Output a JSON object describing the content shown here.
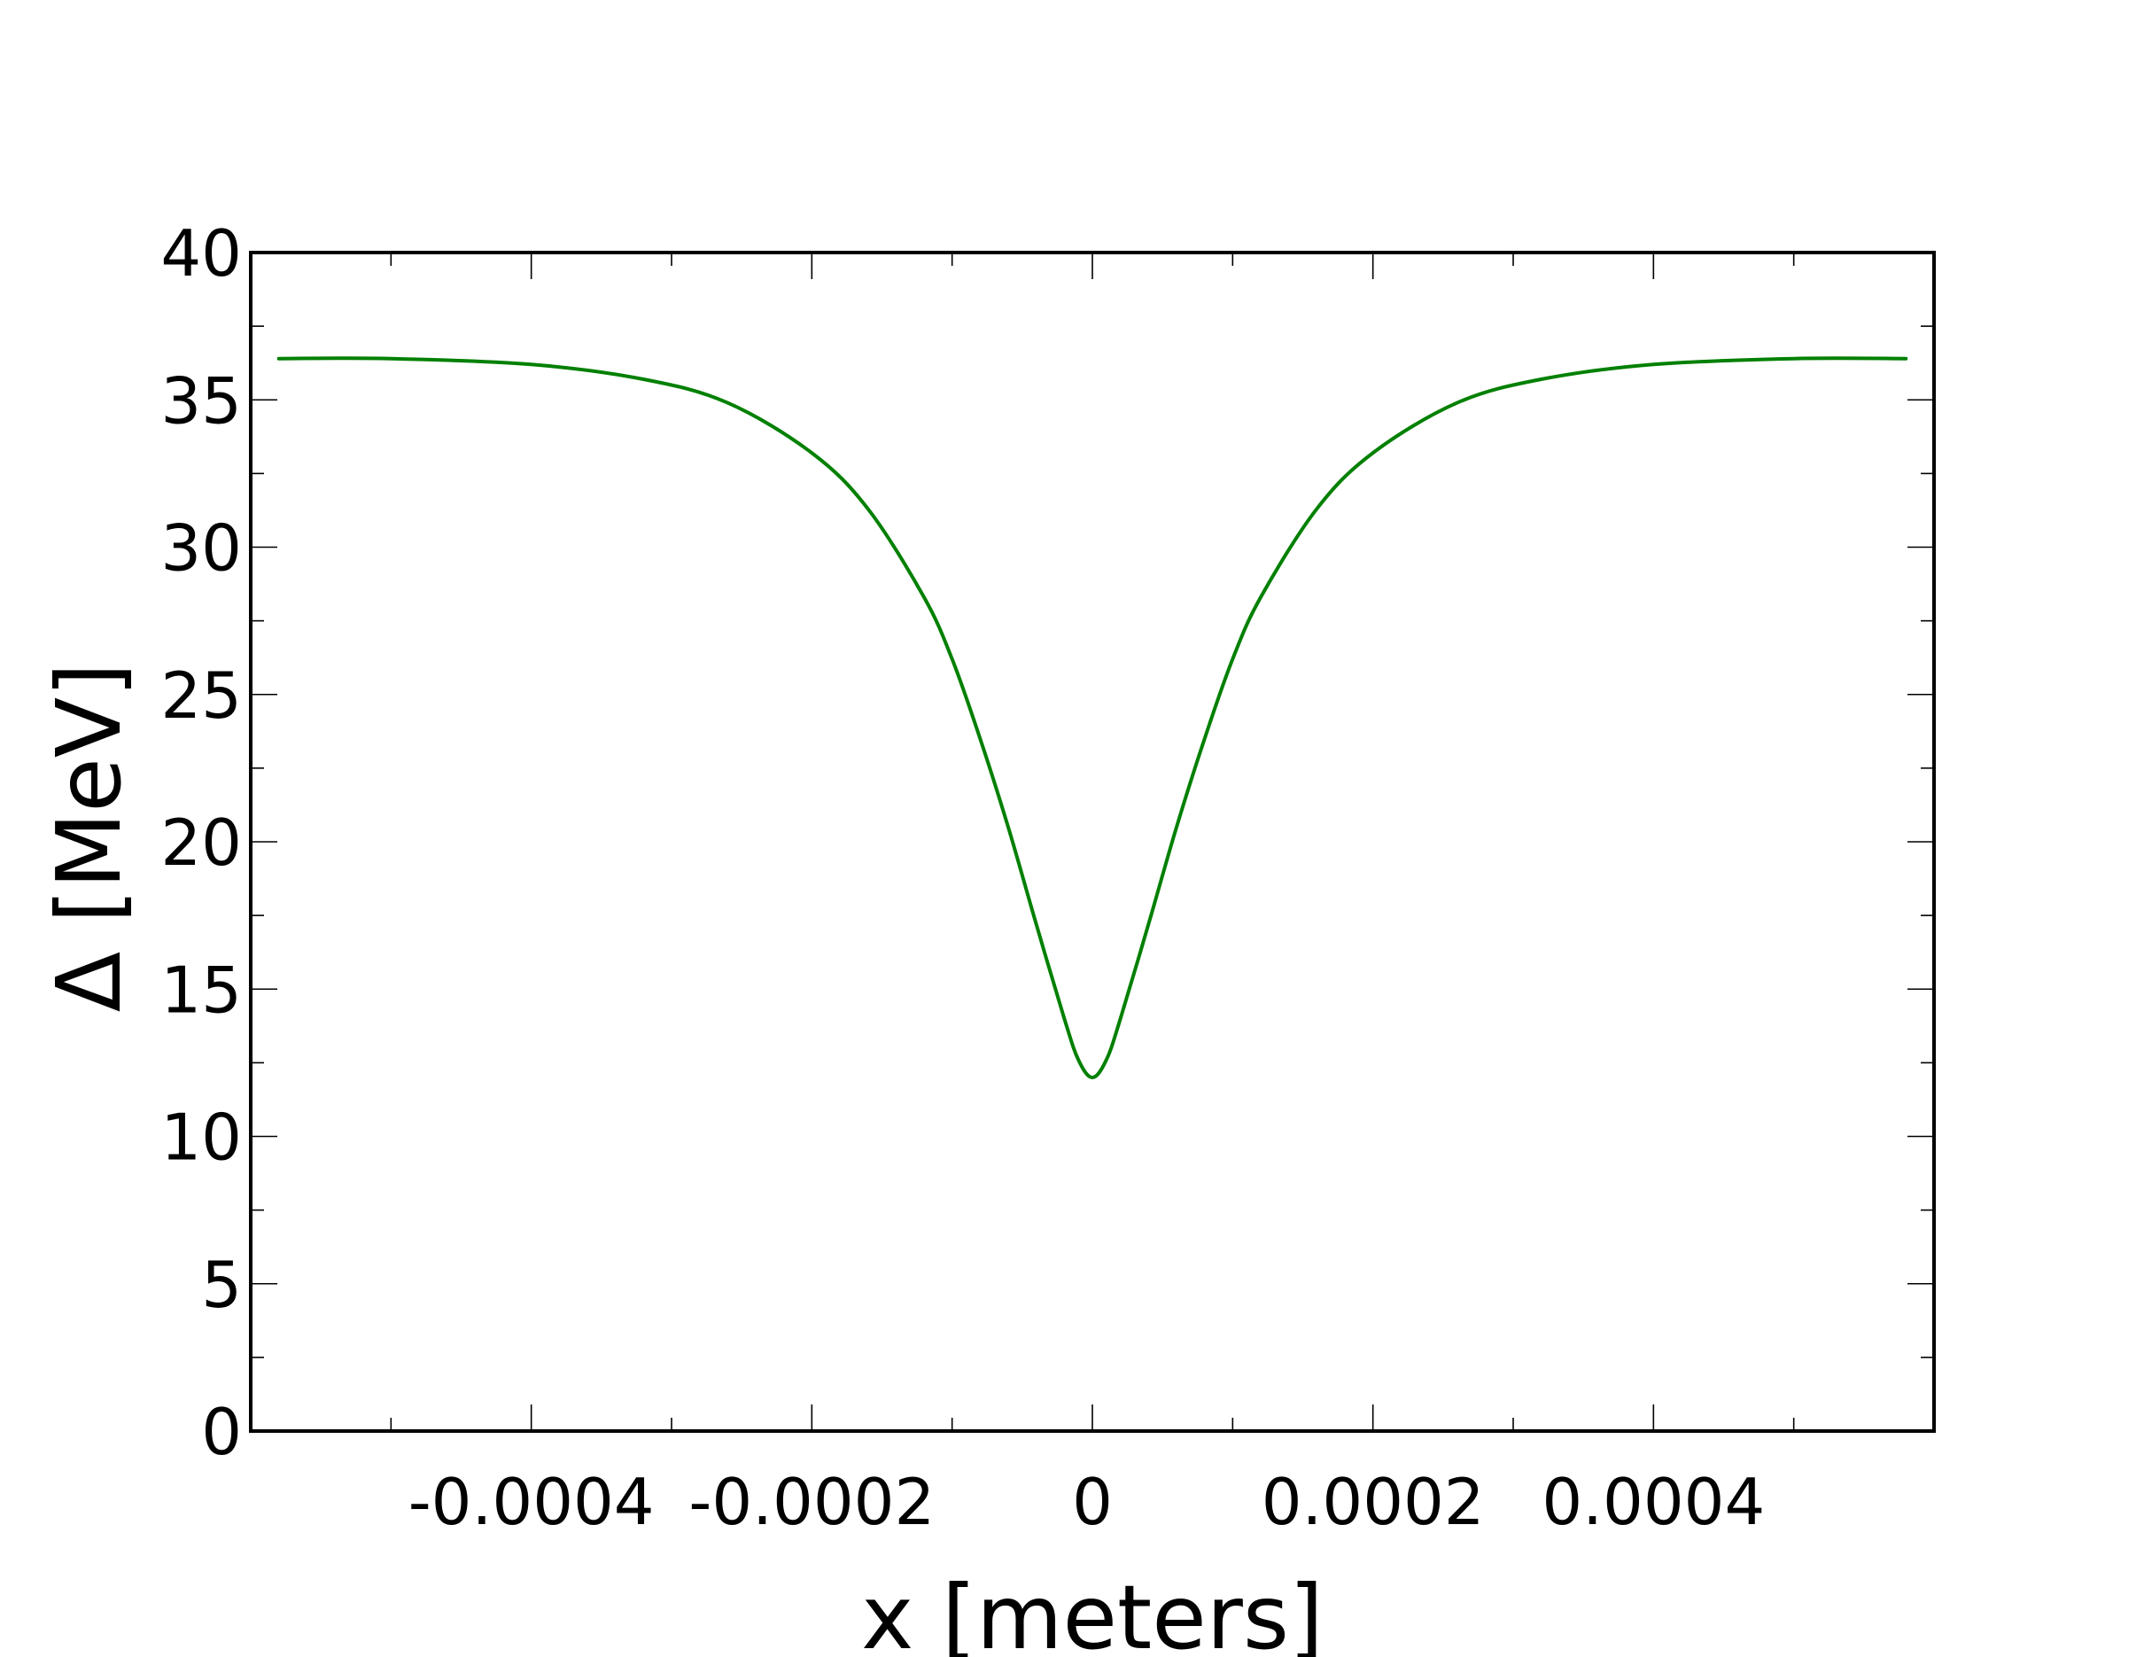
{
  "chart_data": {
    "type": "line",
    "xlabel": "x [meters]",
    "ylabel": "Δ [MeV]",
    "xlim": [
      -0.0006,
      0.0006
    ],
    "ylim": [
      0,
      40
    ],
    "grid": false,
    "legend": "none",
    "x_ticks": [
      -0.0004,
      -0.0002,
      0,
      0.0002,
      0.0004
    ],
    "x_tick_labels": [
      "-0.0004",
      "-0.0002",
      "0",
      "0.0002",
      "0.0004"
    ],
    "x_minor_ticks": [
      -0.0005,
      -0.0003,
      -0.0001,
      0.0001,
      0.0003,
      0.0005
    ],
    "y_ticks": [
      0,
      5,
      10,
      15,
      20,
      25,
      30,
      35,
      40
    ],
    "y_tick_labels": [
      "0",
      "5",
      "10",
      "15",
      "20",
      "25",
      "30",
      "35",
      "40"
    ],
    "y_minor_ticks": [
      2.5,
      7.5,
      12.5,
      17.5,
      22.5,
      27.5,
      32.5,
      37.5
    ],
    "series": [
      {
        "color": "#008000",
        "x": [
          -0.00058,
          -0.0005,
          -0.0004,
          -0.00032,
          -0.00026,
          -0.0002,
          -0.00016,
          -0.00012,
          -0.0001,
          -8e-05,
          -6e-05,
          -4e-05,
          -2e-05,
          -1e-05,
          0,
          1e-05,
          2e-05,
          4e-05,
          6e-05,
          8e-05,
          0.0001,
          0.00012,
          0.00016,
          0.0002,
          0.00026,
          0.00032,
          0.0004,
          0.0005,
          0.00058
        ],
        "y": [
          36.4,
          36.4,
          36.2,
          35.7,
          34.9,
          33.2,
          31.3,
          28.3,
          26.2,
          23.5,
          20.5,
          17.2,
          14.0,
          12.6,
          12.0,
          12.6,
          14.0,
          17.2,
          20.5,
          23.5,
          26.2,
          28.3,
          31.3,
          33.2,
          34.9,
          35.7,
          36.2,
          36.4,
          36.4
        ]
      }
    ]
  }
}
